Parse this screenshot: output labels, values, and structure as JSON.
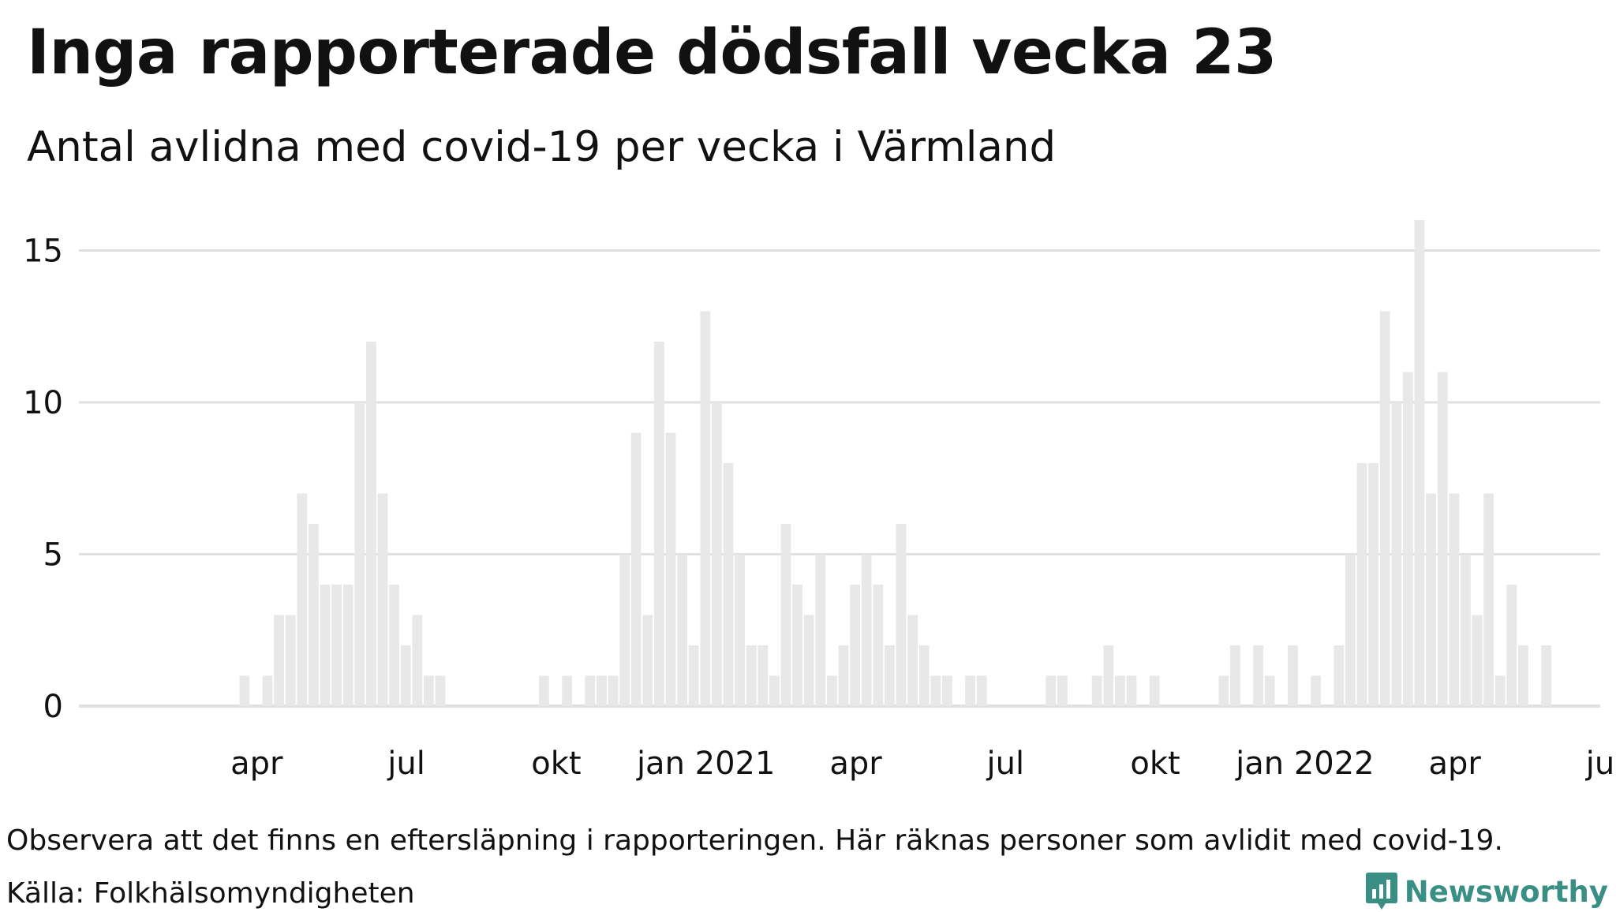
{
  "header": {
    "title": "Inga rapporterade dödsfall vecka 23",
    "subtitle": "Antal avlidna med covid-19 per vecka i Värmland"
  },
  "footer": {
    "note": "Observera att det finns en eftersläpning i rapporteringen. Här räknas personer som avlidit med covid-19.",
    "source": "Källa: Folkhälsomyndigheten",
    "brand": "Newsworthy"
  },
  "colors": {
    "bar": "#e8e8e8",
    "grid": "#e0e0e0",
    "brand": "#3a8f84"
  },
  "chart_data": {
    "type": "bar",
    "title": "Inga rapporterade dödsfall vecka 23",
    "subtitle": "Antal avlidna med covid-19 per vecka i Värmland",
    "xlabel": "",
    "ylabel": "",
    "ylim": [
      0,
      16
    ],
    "yticks": [
      0,
      5,
      10,
      15
    ],
    "grid": true,
    "x_start": "2020 v9",
    "x_end": "2022 v28",
    "x_tick_weeks": [
      14,
      27,
      40,
      53,
      66,
      79,
      92,
      105,
      118,
      131
    ],
    "x_tick_labels": [
      "apr",
      "jul",
      "okt",
      "jan 2021",
      "apr",
      "jul",
      "okt",
      "jan 2022",
      "apr",
      "jul"
    ],
    "values": [
      0,
      0,
      0,
      0,
      1,
      0,
      1,
      3,
      3,
      7,
      6,
      4,
      4,
      4,
      10,
      12,
      7,
      4,
      2,
      3,
      1,
      1,
      0,
      0,
      0,
      0,
      0,
      0,
      0,
      0,
      1,
      0,
      1,
      0,
      1,
      1,
      1,
      5,
      9,
      3,
      12,
      9,
      5,
      2,
      13,
      10,
      8,
      5,
      2,
      2,
      1,
      6,
      4,
      3,
      5,
      1,
      2,
      4,
      5,
      4,
      2,
      6,
      3,
      2,
      1,
      1,
      0,
      1,
      1,
      0,
      0,
      0,
      0,
      0,
      1,
      1,
      0,
      0,
      1,
      2,
      1,
      1,
      0,
      1,
      0,
      0,
      0,
      0,
      0,
      1,
      2,
      0,
      2,
      1,
      0,
      2,
      0,
      1,
      0,
      2,
      5,
      8,
      8,
      13,
      10,
      11,
      16,
      7,
      11,
      7,
      5,
      3,
      7,
      1,
      4,
      2,
      0,
      2,
      0,
      0,
      0,
      0,
      0,
      0,
      0,
      0,
      0,
      0,
      0,
      0
    ]
  }
}
